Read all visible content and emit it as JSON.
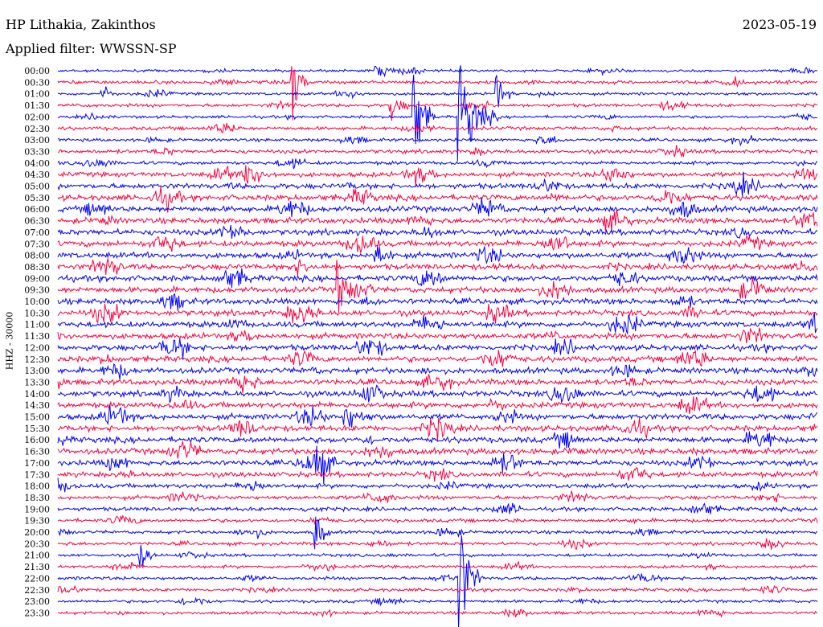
{
  "header": {
    "station": "HP Lithakia, Zakinthos",
    "date": "2023-05-19",
    "filter": "Applied filter: WWSSN-SP"
  },
  "channel_label": "HHZ - 30000",
  "colors": {
    "trace_a": "#0000ff",
    "trace_b": "#ff0040",
    "background": "#ffffff"
  },
  "chart_data": {
    "type": "line",
    "title": "HP Lithakia, Zakinthos",
    "subtitle": "Applied filter: WWSSN-SP",
    "ylabel": "HHZ - 30000",
    "xlabel": "",
    "categories": [
      "00:00",
      "00:30",
      "01:00",
      "01:30",
      "02:00",
      "02:30",
      "03:00",
      "03:30",
      "04:00",
      "04:30",
      "05:00",
      "05:30",
      "06:00",
      "06:30",
      "07:00",
      "07:30",
      "08:00",
      "08:30",
      "09:00",
      "09:30",
      "10:00",
      "10:30",
      "11:00",
      "11:30",
      "12:00",
      "12:30",
      "13:00",
      "13:30",
      "14:00",
      "14:30",
      "15:00",
      "15:30",
      "16:00",
      "16:30",
      "17:00",
      "17:30",
      "18:00",
      "18:30",
      "19:00",
      "19:30",
      "20:00",
      "20:30",
      "21:00",
      "21:30",
      "22:00",
      "22:30",
      "23:00",
      "23:30"
    ],
    "row_activity": [
      0.3,
      0.5,
      0.35,
      0.45,
      0.35,
      0.5,
      0.4,
      0.6,
      0.5,
      0.8,
      0.9,
      1.0,
      1.0,
      1.0,
      1.0,
      1.0,
      1.0,
      1.0,
      1.0,
      1.0,
      1.0,
      1.0,
      1.0,
      1.0,
      1.0,
      1.0,
      1.0,
      1.0,
      1.0,
      1.0,
      1.0,
      1.0,
      1.0,
      1.0,
      0.9,
      0.85,
      0.7,
      0.6,
      0.6,
      0.5,
      0.45,
      0.45,
      0.4,
      0.4,
      0.45,
      0.45,
      0.4,
      0.4
    ],
    "events": [
      {
        "row": 0,
        "x": 0.42,
        "amp": 0.3,
        "dur": 0.06
      },
      {
        "row": 1,
        "x": 0.31,
        "amp": 2.2,
        "dur": 0.02
      },
      {
        "row": 2,
        "x": 0.06,
        "amp": 0.5,
        "dur": 0.02
      },
      {
        "row": 2,
        "x": 0.58,
        "amp": 1.2,
        "dur": 0.02
      },
      {
        "row": 3,
        "x": 0.44,
        "amp": 0.8,
        "dur": 0.03
      },
      {
        "row": 4,
        "x": 0.47,
        "amp": 3.0,
        "dur": 0.03
      },
      {
        "row": 4,
        "x": 0.53,
        "amp": 3.2,
        "dur": 0.05
      },
      {
        "row": 9,
        "x": 0.25,
        "amp": 0.9,
        "dur": 0.04
      },
      {
        "row": 11,
        "x": 0.79,
        "amp": 0.9,
        "dur": 0.05
      },
      {
        "row": 16,
        "x": 0.42,
        "amp": 0.9,
        "dur": 0.03
      },
      {
        "row": 19,
        "x": 0.37,
        "amp": 1.5,
        "dur": 0.03
      },
      {
        "row": 30,
        "x": 0.38,
        "amp": 0.9,
        "dur": 0.04
      },
      {
        "row": 34,
        "x": 0.34,
        "amp": 1.1,
        "dur": 0.04
      },
      {
        "row": 40,
        "x": 0.34,
        "amp": 1.6,
        "dur": 0.02
      },
      {
        "row": 42,
        "x": 0.11,
        "amp": 1.0,
        "dur": 0.02
      },
      {
        "row": 44,
        "x": 0.53,
        "amp": 3.5,
        "dur": 0.03
      }
    ],
    "grid": false,
    "legend": "none"
  }
}
